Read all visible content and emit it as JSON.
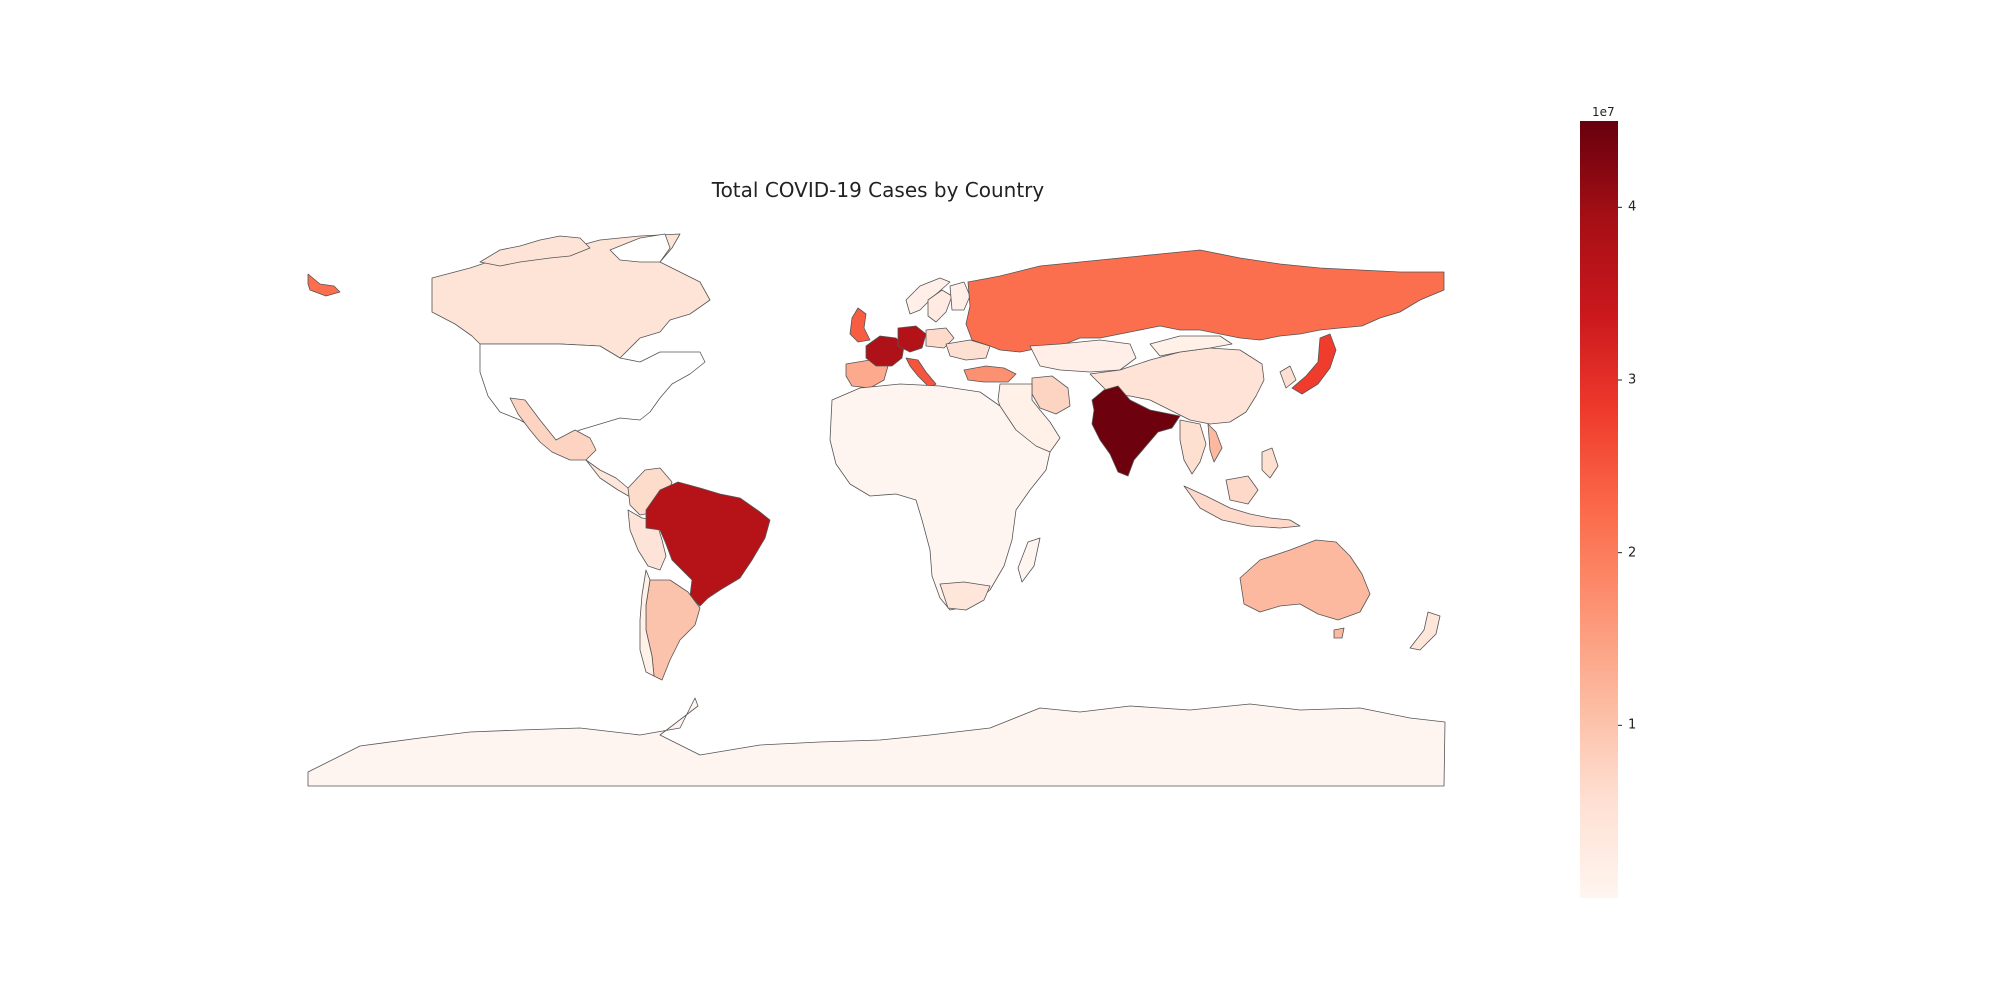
{
  "title": "Total COVID-19 Cases by Country",
  "colorbar": {
    "multiplier": "1e7",
    "min": 0,
    "max": 4.5,
    "ticks": [
      {
        "value": 1,
        "label": "1"
      },
      {
        "value": 2,
        "label": "2"
      },
      {
        "value": 3,
        "label": "3"
      },
      {
        "value": 4,
        "label": "4"
      }
    ],
    "colormap": [
      "#fff5f0",
      "#fee0d2",
      "#fcbba1",
      "#fc9272",
      "#fb6a4a",
      "#ef3b2c",
      "#cb181d",
      "#a50f15",
      "#67000d"
    ]
  },
  "countries": [
    {
      "name": "India",
      "cases": 44.5,
      "unit": "millions"
    },
    {
      "name": "France",
      "cases": 38.0,
      "unit": "millions"
    },
    {
      "name": "Germany",
      "cases": 37.5,
      "unit": "millions"
    },
    {
      "name": "Brazil",
      "cases": 37.0,
      "unit": "millions"
    },
    {
      "name": "Japan",
      "cases": 28.0,
      "unit": "millions"
    },
    {
      "name": "Italy",
      "cases": 25.0,
      "unit": "millions"
    },
    {
      "name": "United Kingdom",
      "cases": 24.0,
      "unit": "millions"
    },
    {
      "name": "Russia",
      "cases": 22.0,
      "unit": "millions"
    },
    {
      "name": "Turkey",
      "cases": 17.0,
      "unit": "millions"
    },
    {
      "name": "Spain",
      "cases": 13.7,
      "unit": "millions"
    },
    {
      "name": "Australia",
      "cases": 11.5,
      "unit": "millions"
    },
    {
      "name": "Argentina",
      "cases": 10.0,
      "unit": "millions"
    },
    {
      "name": "Vietnam",
      "cases": 11.5,
      "unit": "millions"
    },
    {
      "name": "Mexico",
      "cases": 7.5,
      "unit": "millions"
    },
    {
      "name": "Iran",
      "cases": 7.5,
      "unit": "millions"
    },
    {
      "name": "Indonesia",
      "cases": 6.8,
      "unit": "millions"
    },
    {
      "name": "Poland",
      "cases": 6.5,
      "unit": "millions"
    },
    {
      "name": "Colombia",
      "cases": 6.3,
      "unit": "millions"
    },
    {
      "name": "Ukraine",
      "cases": 5.5,
      "unit": "millions"
    },
    {
      "name": "Canada",
      "cases": 4.6,
      "unit": "millions"
    },
    {
      "name": "China",
      "cases": 4.9,
      "unit": "millions"
    },
    {
      "name": "Peru",
      "cases": 4.5,
      "unit": "millions"
    },
    {
      "name": "South Africa",
      "cases": 4.1,
      "unit": "millions"
    },
    {
      "name": "Kazakhstan",
      "cases": 1.5,
      "unit": "millions"
    },
    {
      "name": "Sweden",
      "cases": 2.7,
      "unit": "millions"
    },
    {
      "name": "Norway",
      "cases": 1.5,
      "unit": "millions"
    },
    {
      "name": "Finland",
      "cases": 1.5,
      "unit": "millions"
    },
    {
      "name": "Antarctica",
      "cases": 0,
      "unit": "millions"
    }
  ]
}
